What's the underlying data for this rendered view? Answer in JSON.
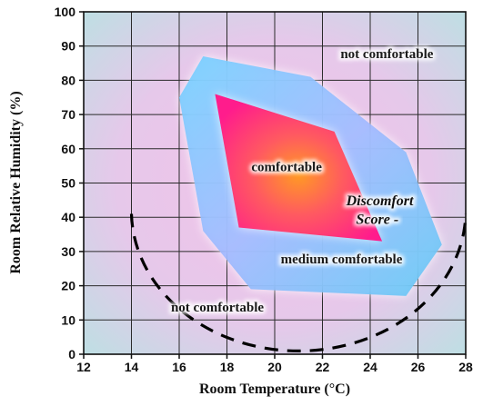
{
  "chart_data": {
    "type": "area",
    "title": "",
    "xlabel": "Room Temperature (°C)",
    "ylabel": "Room Relative Humidity (%)",
    "xlim": [
      12,
      28
    ],
    "ylim": [
      0,
      100
    ],
    "xticks": [
      12,
      14,
      16,
      18,
      20,
      22,
      24,
      26,
      28
    ],
    "yticks": [
      0,
      10,
      20,
      30,
      40,
      50,
      60,
      70,
      80,
      90,
      100
    ],
    "grid": true,
    "zones": [
      {
        "name": "medium comfortable",
        "color": "#8fb8ff",
        "points": [
          [
            17.0,
            87.0
          ],
          [
            21.5,
            81.0
          ],
          [
            25.5,
            59.0
          ],
          [
            27.0,
            32.0
          ],
          [
            25.5,
            17.0
          ],
          [
            19.0,
            19.0
          ],
          [
            17.0,
            36.0
          ],
          [
            16.0,
            75.0
          ]
        ]
      },
      {
        "name": "comfortable",
        "color": "#ff2f86",
        "points": [
          [
            17.5,
            76.0
          ],
          [
            22.5,
            65.0
          ],
          [
            24.5,
            33.0
          ],
          [
            18.5,
            37.0
          ]
        ]
      }
    ],
    "labels": [
      {
        "id": "not_comfortable_top",
        "text": "not comfortable",
        "x": 24.7,
        "y": 86.5
      },
      {
        "id": "comfortable",
        "text": "comfortable",
        "x": 20.5,
        "y": 53.5
      },
      {
        "id": "medium_comfortable",
        "text": "medium comfortable",
        "x": 22.8,
        "y": 26.5
      },
      {
        "id": "not_comfortable_bottom",
        "text": "not comfortable",
        "x": 17.6,
        "y": 12.5
      },
      {
        "id": "discomfort_line1",
        "text": "Discomfort",
        "x": 24.4,
        "y": 43.5
      },
      {
        "id": "discomfort_line2",
        "text": "Score -",
        "x": 24.3,
        "y": 38.0
      }
    ],
    "discomfort_curve": {
      "style": "dashed",
      "color": "#000000",
      "center": [
        21.0,
        41.0
      ],
      "radius_x": 7.0,
      "radius_y": 41.0
    },
    "colors": {
      "plot_background_center": "#f0c4e6",
      "plot_background_edge": "#bfe3e4",
      "outer_zone_glow": "#cde3ff",
      "comfort_core": "#ff8a2a"
    }
  }
}
